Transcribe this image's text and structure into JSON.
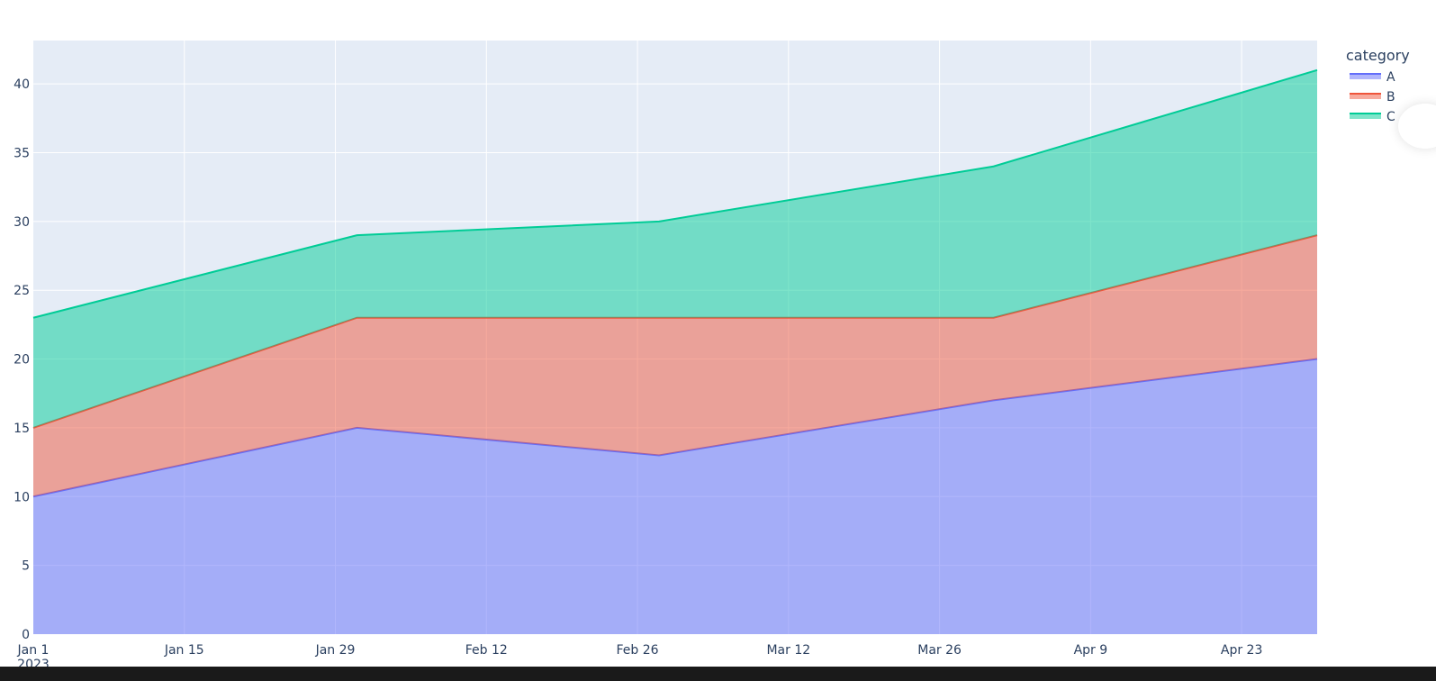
{
  "chart_data": {
    "type": "area",
    "stacked": true,
    "title": "",
    "xlabel": "",
    "ylabel": "",
    "x": [
      "2023-01-01",
      "2023-01-31",
      "2023-02-28",
      "2023-03-31",
      "2023-04-30"
    ],
    "series": [
      {
        "name": "A",
        "values": [
          10,
          15,
          13,
          17,
          20
        ],
        "color": "#636efa"
      },
      {
        "name": "B",
        "values": [
          5,
          8,
          10,
          6,
          9
        ],
        "color": "#EF553B"
      },
      {
        "name": "C",
        "values": [
          8,
          6,
          7,
          11,
          12
        ],
        "color": "#00cc96"
      }
    ],
    "ylim": [
      0,
      43.15
    ],
    "xlim": [
      "2023-01-01",
      "2023-04-30"
    ],
    "y_ticks": [
      0,
      5,
      10,
      15,
      20,
      25,
      30,
      35,
      40
    ],
    "x_ticks": [
      {
        "date": "2023-01-01",
        "label": "Jan 1",
        "sublabel": "2023"
      },
      {
        "date": "2023-01-15",
        "label": "Jan 15"
      },
      {
        "date": "2023-01-29",
        "label": "Jan 29"
      },
      {
        "date": "2023-02-12",
        "label": "Feb 12"
      },
      {
        "date": "2023-02-26",
        "label": "Feb 26"
      },
      {
        "date": "2023-03-12",
        "label": "Mar 12"
      },
      {
        "date": "2023-03-26",
        "label": "Mar 26"
      },
      {
        "date": "2023-04-09",
        "label": "Apr 9"
      },
      {
        "date": "2023-04-23",
        "label": "Apr 23"
      }
    ],
    "grid": true,
    "legend": {
      "title": "category",
      "placement": "top-right"
    },
    "background": "#e5ecf6"
  }
}
